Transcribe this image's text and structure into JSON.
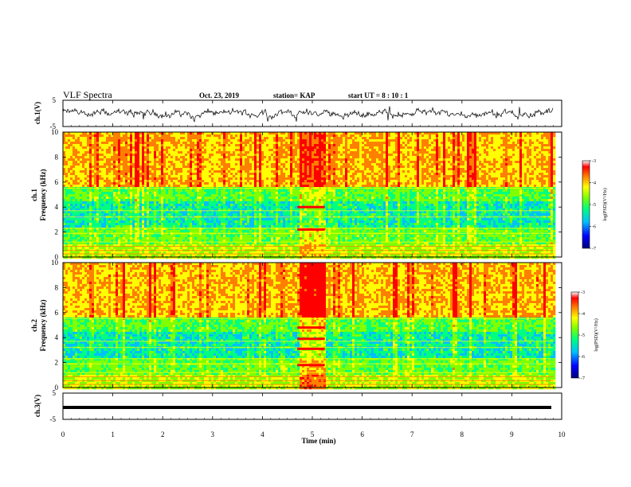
{
  "header": {
    "title": "VLF Spectra",
    "date": "Oct. 23, 2019",
    "station": "station= KAP",
    "start": "start  UT =  8 : 10 : 1"
  },
  "colors": {
    "scale": [
      "#00007f",
      "#0000ff",
      "#00bfff",
      "#00ff7f",
      "#7fff00",
      "#ffff00",
      "#ff7f00",
      "#ff0000",
      "#ffffff"
    ]
  },
  "chart_data": [
    {
      "type": "line",
      "panel": "ch1-waveform",
      "ylabel": "ch.1(V)",
      "ylim": [
        -5,
        5
      ],
      "yticks": [
        "5",
        "-5"
      ],
      "xlim": [
        0,
        10
      ]
    },
    {
      "type": "heatmap",
      "panel": "ch1-spectrogram",
      "ylabel": "ch.1\nFrequency (kHz)",
      "ylim": [
        0,
        10
      ],
      "yticks": [
        "0",
        "2",
        "4",
        "6",
        "8",
        "10"
      ],
      "xlim": [
        0,
        10
      ],
      "data_extent_min": 9.83,
      "colorbar": {
        "label": "log(PSD)(V²/Hz)",
        "range": [
          -7,
          -3
        ],
        "ticks": [
          "-3",
          "-4",
          "-5",
          "-6",
          "-7"
        ]
      }
    },
    {
      "type": "heatmap",
      "panel": "ch2-spectrogram",
      "ylabel": "ch.2\nFrequency (kHz)",
      "ylim": [
        0,
        10
      ],
      "yticks": [
        "0",
        "2",
        "4",
        "6",
        "8",
        "10"
      ],
      "xlim": [
        0,
        10
      ],
      "data_extent_min": 9.83,
      "colorbar": {
        "label": "log(PSD)(V²/Hz)",
        "range": [
          -7,
          -3
        ],
        "ticks": [
          "-3",
          "-4",
          "-5",
          "-6",
          "-7"
        ]
      }
    },
    {
      "type": "line",
      "panel": "ch3-waveform",
      "ylabel": "ch.3(V)",
      "ylim": [
        -5,
        5
      ],
      "yticks": [
        "5",
        "-5"
      ],
      "xlim": [
        0,
        10
      ],
      "xlabel": "Time  (min)",
      "xticks": [
        "0",
        "1",
        "2",
        "3",
        "4",
        "5",
        "6",
        "7",
        "8",
        "9",
        "10"
      ]
    }
  ]
}
